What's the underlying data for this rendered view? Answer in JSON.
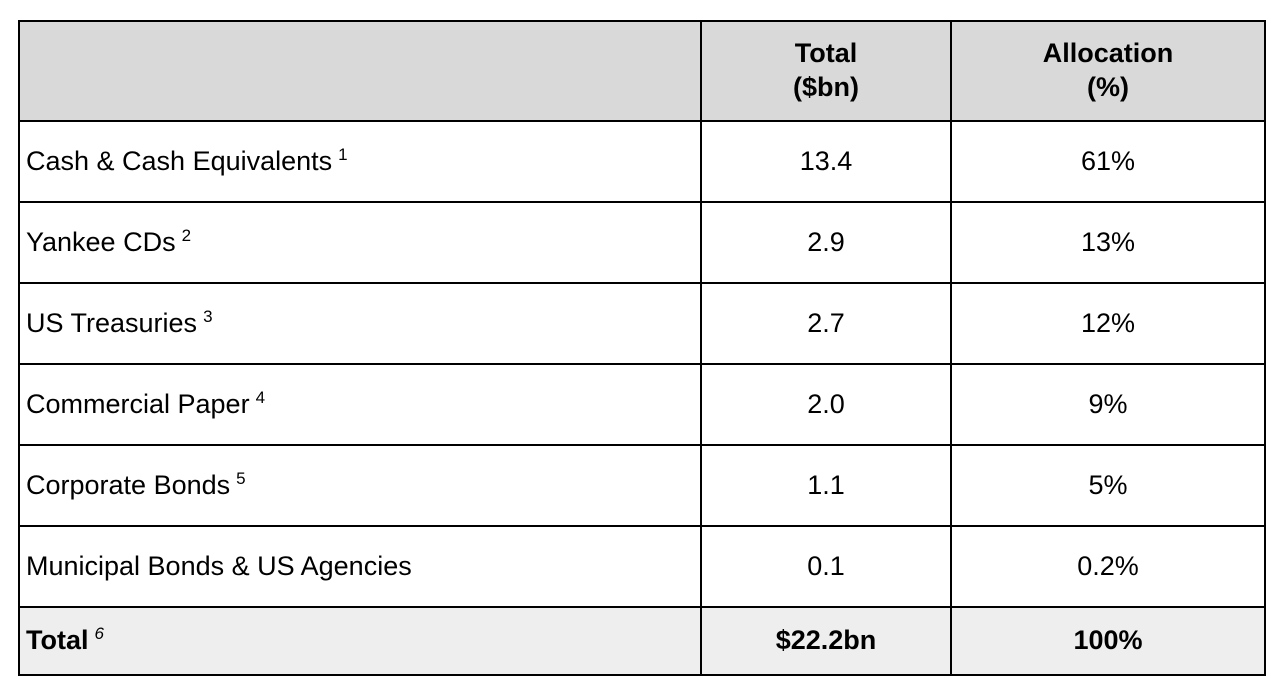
{
  "colors": {
    "header_bg": "#d9d9d9",
    "total_row_bg": "#eeeeee",
    "border": "#000000",
    "text": "#000000",
    "page_bg": "#ffffff"
  },
  "table": {
    "header": {
      "category": "",
      "total_line1": "Total",
      "total_line2": "($bn)",
      "allocation_line1": "Allocation",
      "allocation_line2": "(%)"
    },
    "rows": [
      {
        "label": "Cash & Cash Equivalents",
        "sup": "1",
        "total": "13.4",
        "allocation": "61%"
      },
      {
        "label": "Yankee CDs",
        "sup": "2",
        "total": "2.9",
        "allocation": "13%"
      },
      {
        "label": "US Treasuries",
        "sup": "3",
        "total": "2.7",
        "allocation": "12%"
      },
      {
        "label": "Commercial Paper",
        "sup": "4",
        "total": "2.0",
        "allocation": "9%"
      },
      {
        "label": "Corporate Bonds",
        "sup": "5",
        "total": "1.1",
        "allocation": "5%"
      },
      {
        "label": "Municipal Bonds & US Agencies",
        "sup": "",
        "total": "0.1",
        "allocation": "0.2%"
      }
    ],
    "total_row": {
      "label": "Total",
      "sup": "6",
      "total": "$22.2bn",
      "allocation": "100%"
    }
  }
}
